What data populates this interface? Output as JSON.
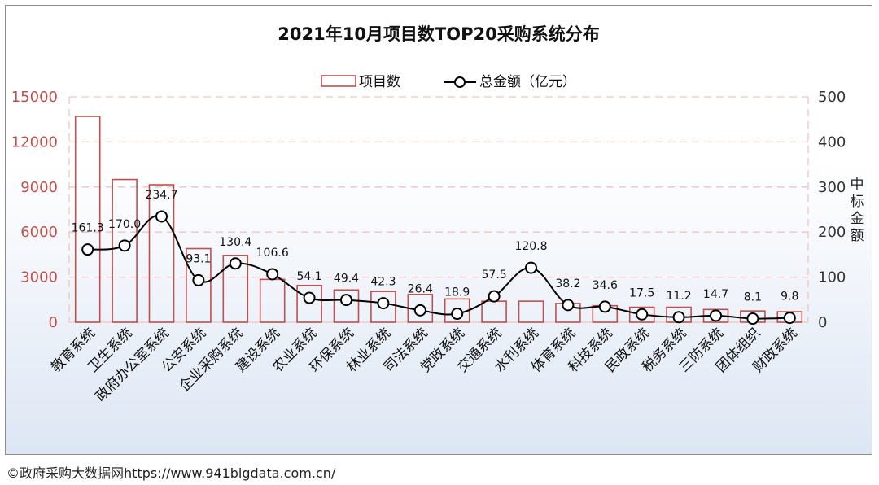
{
  "source_note": "©政府采购大数据网https://www.941bigdata.com.cn/",
  "colors": {
    "bar_stroke": "#c0504d",
    "line": "#000000",
    "left_axis": "#c0504d",
    "right_axis": "#333333",
    "grid": "#f2c4c4",
    "bg_top": "#ffffff",
    "bg_bottom": "#dde6f4"
  },
  "chart_data": {
    "type": "bar",
    "title": "2021年10月项目数TOP20采购系统分布",
    "legend": {
      "placement": "top-center",
      "bar_label": "项目数",
      "line_label": "总金额（亿元）"
    },
    "categories": [
      "教育系统",
      "卫生系统",
      "政府办公室系统",
      "公安系统",
      "企业采购系统",
      "建设系统",
      "农业系统",
      "环保系统",
      "林业系统",
      "司法系统",
      "党政系统",
      "交通系统",
      "水利系统",
      "体育系统",
      "科技系统",
      "民政系统",
      "税务系统",
      "三防系统",
      "团体组织",
      "财政系统"
    ],
    "series": [
      {
        "name": "项目数",
        "type": "bar",
        "axis": "left",
        "values": [
          13700,
          9500,
          9150,
          4900,
          4450,
          2850,
          2450,
          2150,
          2050,
          1850,
          1550,
          1400,
          1400,
          1250,
          1100,
          1000,
          1000,
          850,
          750,
          700
        ]
      },
      {
        "name": "总金额（亿元）",
        "type": "line",
        "axis": "right",
        "values": [
          161.3,
          170.0,
          234.7,
          93.1,
          130.4,
          106.6,
          54.1,
          49.4,
          42.3,
          26.4,
          18.9,
          57.5,
          120.8,
          38.2,
          34.6,
          17.5,
          11.2,
          14.7,
          8.1,
          9.8
        ],
        "labels": [
          "161.3",
          "170.0",
          "234.7",
          "93.1",
          "130.4",
          "106.6",
          "54.1",
          "49.4",
          "42.3",
          "26.4",
          "18.9",
          "57.5",
          "120.8",
          "38.2",
          "34.6",
          "17.5",
          "11.2",
          "14.7",
          "8.1",
          "9.8"
        ]
      }
    ],
    "y_left": {
      "ylim": [
        0,
        15000
      ],
      "ticks": [
        "0",
        "3000",
        "6000",
        "9000",
        "12000",
        "15000"
      ]
    },
    "y_right": {
      "ylim": [
        0,
        500
      ],
      "ticks": [
        "0",
        "100",
        "200",
        "300",
        "400",
        "500"
      ],
      "label": "中标金额"
    },
    "grid": true
  }
}
